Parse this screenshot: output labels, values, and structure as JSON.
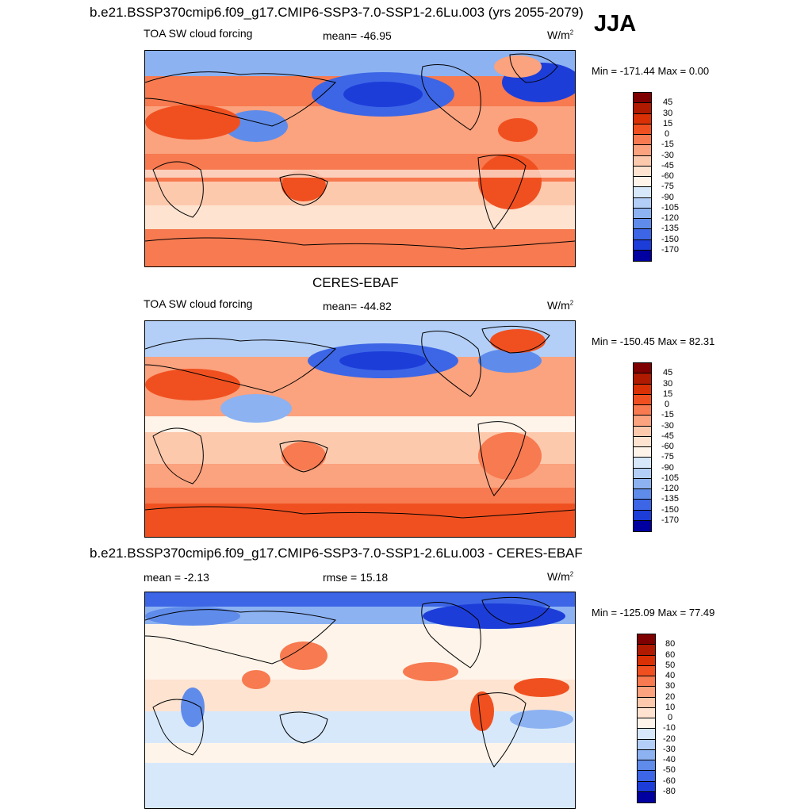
{
  "season": "JJA",
  "main_title": "b.e21.BSSP370cmip6.f09_g17.CMIP6-SSP3-7.0-SSP1-2.6Lu.003 (yrs 2055-2079)",
  "panels": [
    {
      "variable": "TOA SW cloud forcing",
      "mean": "mean= -46.95",
      "units": "W/m",
      "units_exp": "2",
      "minmax": "Min = -171.44 Max =   0.00"
    },
    {
      "title": "CERES-EBAF",
      "variable": "TOA SW cloud forcing",
      "mean": "mean= -44.82",
      "units": "W/m",
      "units_exp": "2",
      "minmax": "Min = -150.45 Max =  82.31"
    },
    {
      "title": "b.e21.BSSP370cmip6.f09_g17.CMIP6-SSP3-7.0-SSP1-2.6Lu.003 - CERES-EBAF",
      "mean": "mean =  -2.13",
      "rmse": "rmse =  15.18",
      "units": "W/m",
      "units_exp": "2",
      "minmax": "Min = -125.09 Max =  77.49"
    }
  ],
  "colorbar_abs": {
    "ticks": [
      "45",
      "30",
      "15",
      "0",
      "-15",
      "-30",
      "-45",
      "-60",
      "-75",
      "-90",
      "-105",
      "-120",
      "-135",
      "-150",
      "-170"
    ],
    "colors": [
      "#7f0000",
      "#b01a00",
      "#d93005",
      "#f05020",
      "#f77a50",
      "#fba27e",
      "#fdc9ad",
      "#fde3d0",
      "#fef4ea",
      "#d7e8fb",
      "#b3cff7",
      "#8cb2f2",
      "#5f8ceb",
      "#3c66e6",
      "#1d3dd9",
      "#0000a0"
    ]
  },
  "colorbar_diff": {
    "ticks": [
      "80",
      "60",
      "50",
      "40",
      "30",
      "20",
      "10",
      "0",
      "-10",
      "-20",
      "-30",
      "-40",
      "-50",
      "-60",
      "-80"
    ],
    "colors": [
      "#7f0000",
      "#b01a00",
      "#d93005",
      "#f05020",
      "#f77a50",
      "#fba27e",
      "#fdc9ad",
      "#fde3d0",
      "#fef4ea",
      "#d7e8fb",
      "#b3cff7",
      "#8cb2f2",
      "#5f8ceb",
      "#3c66e6",
      "#1d3dd9",
      "#0000a0"
    ]
  }
}
